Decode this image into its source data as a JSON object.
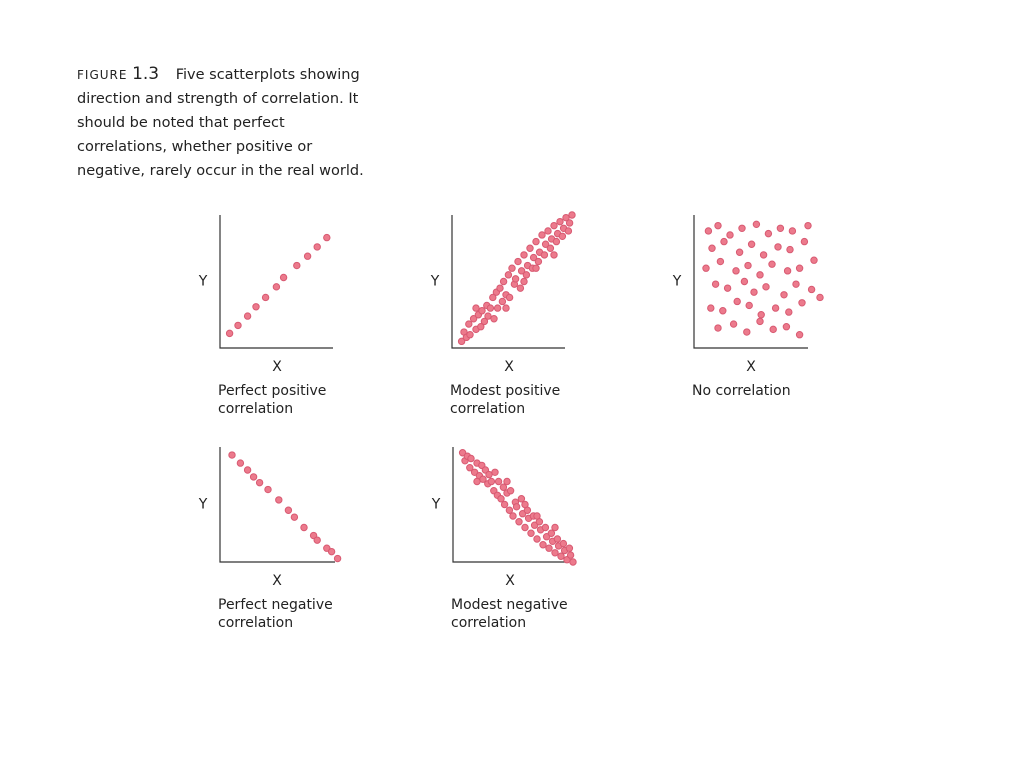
{
  "caption": {
    "label": "FIGURE",
    "number": "1.3",
    "text": "Five scatterplots showing direction and strength of correlation. It should be noted that perfect correlations, whether positive or negative, rarely occur in the real world."
  },
  "chart_data": [
    {
      "type": "scatter",
      "title": "Perfect positive correlation",
      "x_label": "X",
      "y_label": "Y",
      "color": "#ec7a8c",
      "xlim": [
        0,
        100
      ],
      "ylim": [
        0,
        100
      ],
      "x": [
        8,
        15,
        23,
        30,
        38,
        47,
        53,
        64,
        73,
        81,
        89
      ],
      "values": [
        11,
        17,
        24,
        31,
        38,
        46,
        53,
        62,
        69,
        76,
        83
      ]
    },
    {
      "type": "scatter",
      "title": "Modest positive correlation",
      "x_label": "X",
      "y_label": "Y",
      "color": "#ec7a8c",
      "xlim": [
        0,
        100
      ],
      "ylim": [
        0,
        100
      ],
      "x": [
        8,
        10,
        12,
        14,
        15,
        18,
        20,
        22,
        24,
        25,
        27,
        29,
        30,
        32,
        34,
        35,
        37,
        38,
        40,
        42,
        43,
        45,
        47,
        48,
        50,
        52,
        53,
        55,
        57,
        58,
        60,
        62,
        63,
        65,
        67,
        68,
        70,
        72,
        73,
        75,
        77,
        78,
        80,
        82,
        83,
        85,
        87,
        88,
        90,
        92,
        93,
        95,
        97,
        98,
        100,
        20,
        45,
        70,
        85,
        60
      ],
      "values": [
        5,
        12,
        8,
        18,
        10,
        22,
        14,
        25,
        16,
        28,
        20,
        32,
        24,
        30,
        38,
        22,
        42,
        30,
        45,
        35,
        50,
        40,
        55,
        38,
        60,
        48,
        52,
        65,
        45,
        58,
        70,
        55,
        62,
        75,
        60,
        68,
        80,
        65,
        72,
        85,
        70,
        78,
        88,
        75,
        82,
        92,
        80,
        86,
        95,
        84,
        90,
        98,
        88,
        94,
        100,
        30,
        30,
        60,
        70,
        50
      ]
    },
    {
      "type": "scatter",
      "title": "No correlation",
      "x_label": "X",
      "y_label": "Y",
      "color": "#ec7a8c",
      "xlim": [
        0,
        100
      ],
      "ylim": [
        0,
        100
      ],
      "x": [
        12,
        20,
        30,
        40,
        52,
        62,
        72,
        82,
        95,
        15,
        25,
        38,
        48,
        58,
        70,
        80,
        92,
        10,
        22,
        35,
        45,
        55,
        65,
        78,
        88,
        100,
        18,
        28,
        42,
        50,
        60,
        75,
        85,
        98,
        14,
        24,
        36,
        46,
        56,
        68,
        79,
        90,
        105,
        20,
        33,
        44,
        55,
        66,
        77,
        88
      ],
      "values": [
        88,
        92,
        85,
        90,
        93,
        86,
        90,
        88,
        92,
        75,
        80,
        72,
        78,
        70,
        76,
        74,
        80,
        60,
        65,
        58,
        62,
        55,
        63,
        58,
        60,
        66,
        48,
        45,
        50,
        42,
        46,
        40,
        48,
        44,
        30,
        28,
        35,
        32,
        25,
        30,
        27,
        34,
        38,
        15,
        18,
        12,
        20,
        14,
        16,
        10
      ]
    },
    {
      "type": "scatter",
      "title": "Perfect negative correlation",
      "x_label": "X",
      "y_label": "Y",
      "color": "#ec7a8c",
      "xlim": [
        0,
        100
      ],
      "ylim": [
        0,
        100
      ],
      "x": [
        10,
        17,
        23,
        28,
        33,
        40,
        49,
        57,
        62,
        70,
        78,
        81,
        89,
        93,
        98
      ],
      "values": [
        93,
        86,
        80,
        74,
        69,
        63,
        54,
        45,
        39,
        30,
        23,
        19,
        12,
        9,
        3
      ]
    },
    {
      "type": "scatter",
      "title": "Modest negative correlation",
      "x_label": "X",
      "y_label": "Y",
      "color": "#ec7a8c",
      "xlim": [
        0,
        100
      ],
      "ylim": [
        0,
        100
      ],
      "x": [
        8,
        10,
        12,
        14,
        15,
        18,
        20,
        22,
        24,
        25,
        27,
        29,
        30,
        32,
        34,
        35,
        37,
        38,
        40,
        42,
        43,
        45,
        47,
        48,
        50,
        52,
        53,
        55,
        57,
        58,
        60,
        62,
        63,
        65,
        67,
        68,
        70,
        72,
        73,
        75,
        77,
        78,
        80,
        82,
        83,
        85,
        87,
        88,
        90,
        92,
        93,
        95,
        97,
        98,
        100,
        20,
        45,
        70,
        85,
        60
      ],
      "values": [
        95,
        88,
        92,
        82,
        90,
        78,
        86,
        75,
        84,
        72,
        80,
        68,
        76,
        70,
        62,
        78,
        58,
        70,
        55,
        65,
        50,
        60,
        45,
        62,
        40,
        52,
        48,
        35,
        55,
        42,
        30,
        45,
        38,
        25,
        40,
        32,
        20,
        35,
        28,
        15,
        30,
        22,
        12,
        25,
        18,
        8,
        20,
        14,
        5,
        16,
        10,
        2,
        12,
        6,
        0,
        70,
        70,
        40,
        30,
        50
      ]
    }
  ]
}
